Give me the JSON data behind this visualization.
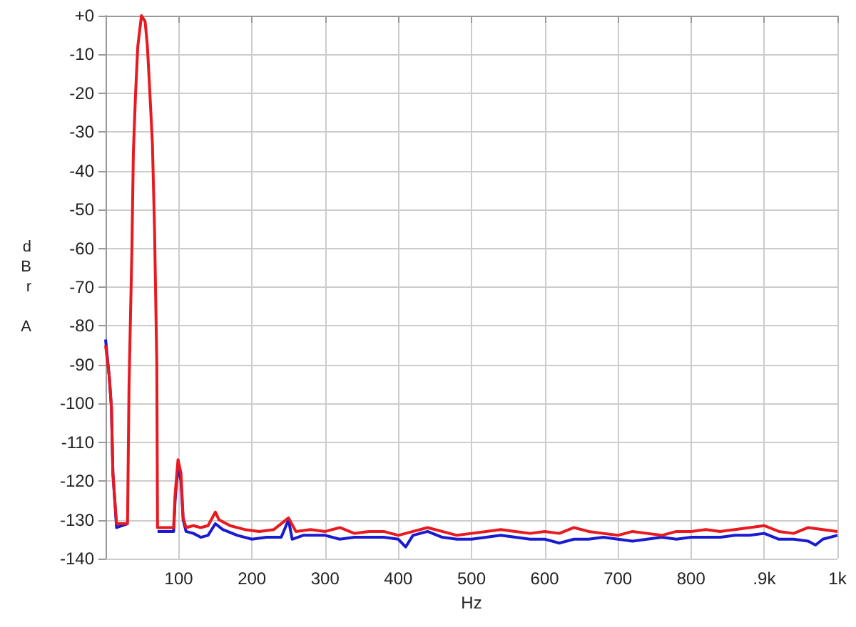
{
  "chart_data": {
    "type": "line",
    "xlabel": "Hz",
    "ylabel": "dBr A",
    "xlim": [
      0,
      1000
    ],
    "xticks": [
      {
        "value": 0,
        "label": null
      },
      100,
      200,
      300,
      400,
      500,
      600,
      700,
      800,
      {
        "value": 900,
        "label": ".9k"
      },
      {
        "value": 1000,
        "label": "1k"
      }
    ],
    "ylim": [
      -140,
      0
    ],
    "yticks": [
      -140,
      -130,
      -120,
      -110,
      -100,
      -90,
      -80,
      -70,
      -60,
      -50,
      -40,
      -30,
      -20,
      -10,
      {
        "value": 0,
        "label": "+0"
      }
    ],
    "grid": true,
    "marker": "none",
    "line_style": "solid",
    "series": [
      {
        "color": "#1a1ad0",
        "x": [
          0,
          5,
          8,
          10,
          15,
          30,
          32,
          36,
          38,
          41,
          44,
          49,
          54,
          57,
          60,
          64,
          67,
          70,
          71,
          80,
          93,
          95,
          99,
          103,
          106,
          110,
          120,
          130,
          140,
          150,
          160,
          180,
          200,
          220,
          240,
          250,
          255,
          270,
          300,
          320,
          340,
          360,
          380,
          400,
          410,
          420,
          440,
          460,
          480,
          500,
          520,
          540,
          560,
          580,
          600,
          620,
          640,
          660,
          680,
          700,
          720,
          740,
          760,
          780,
          800,
          820,
          840,
          860,
          880,
          900,
          920,
          940,
          960,
          970,
          980,
          1000
        ],
        "values": [
          -83.5,
          -93,
          -101,
          -118,
          -132,
          -131,
          null,
          null,
          null,
          null,
          null,
          null,
          null,
          null,
          null,
          null,
          null,
          null,
          -133,
          -133,
          -133,
          -125,
          -116,
          -120,
          -130,
          -133,
          -133.5,
          -134.5,
          -134,
          -131,
          -132.5,
          -134,
          -135,
          -134.5,
          -134.5,
          -130,
          -135,
          -134,
          -134,
          -135,
          -134.5,
          -134.5,
          -134.5,
          -135,
          -137,
          -134,
          -133,
          -134.5,
          -135,
          -135,
          -134.5,
          -134,
          -134.5,
          -135,
          -135,
          -136,
          -135,
          -135,
          -134.5,
          -135,
          -135.5,
          -135,
          -134.5,
          -135,
          -134.5,
          -134.5,
          -134.5,
          -134,
          -134,
          -133.5,
          -135,
          -135,
          -135.5,
          -136.5,
          -135,
          -134
        ]
      },
      {
        "color": "#e8191f",
        "x": [
          0,
          5,
          8,
          10,
          15,
          30,
          32,
          36,
          38,
          41,
          44,
          49,
          54,
          57,
          60,
          64,
          67,
          70,
          71,
          80,
          93,
          95,
          99,
          103,
          106,
          110,
          120,
          130,
          140,
          150,
          155,
          170,
          190,
          210,
          230,
          250,
          260,
          280,
          300,
          320,
          340,
          360,
          380,
          400,
          420,
          440,
          460,
          480,
          500,
          520,
          540,
          560,
          580,
          600,
          620,
          640,
          660,
          680,
          700,
          720,
          740,
          760,
          780,
          800,
          820,
          840,
          860,
          880,
          900,
          920,
          940,
          960,
          980,
          1000
        ],
        "values": [
          -85,
          -93,
          -101,
          -118,
          -131,
          -131,
          -96,
          -60,
          -35,
          -20,
          -8,
          0,
          -1.5,
          -7.5,
          -18,
          -33,
          -56,
          -90,
          -132,
          -132,
          -132,
          -123.5,
          -114.5,
          -118,
          -129.5,
          -132,
          -131.5,
          -132,
          -131.5,
          -128,
          -130,
          -131.5,
          -132.5,
          -133,
          -132.5,
          -129.5,
          -133,
          -132.5,
          -133,
          -132,
          -133.5,
          -133,
          -133,
          -134,
          -133,
          -132,
          -133,
          -134,
          -133.5,
          -133,
          -132.5,
          -133,
          -133.5,
          -133,
          -133.5,
          -132,
          -133,
          -133.5,
          -134,
          -133,
          -133.5,
          -134,
          -133,
          -133,
          -132.5,
          -133,
          -132.5,
          -132,
          -131.5,
          -133,
          -133.5,
          -132,
          -132.5,
          -133
        ]
      }
    ]
  }
}
